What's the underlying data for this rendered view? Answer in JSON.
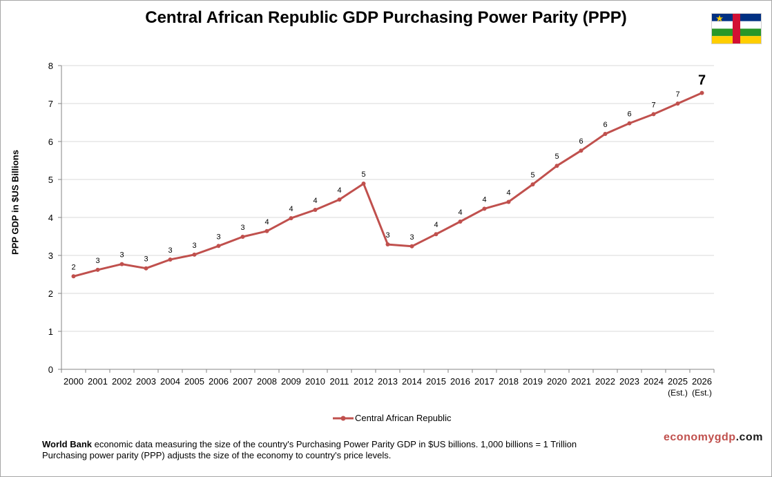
{
  "chart_data": {
    "type": "line",
    "title": "Central African Republic GDP Purchasing Power Parity (PPP)",
    "ylabel": "PPP GDP in $US Billions",
    "xlabel": "",
    "ylim": [
      0,
      8
    ],
    "yticks": [
      0,
      1,
      2,
      3,
      4,
      5,
      6,
      7,
      8
    ],
    "grid": true,
    "legend_position": "bottom",
    "categories": [
      "2000",
      "2001",
      "2002",
      "2003",
      "2004",
      "2005",
      "2006",
      "2007",
      "2008",
      "2009",
      "2010",
      "2011",
      "2012",
      "2013",
      "2014",
      "2015",
      "2016",
      "2017",
      "2018",
      "2019",
      "2020",
      "2021",
      "2022",
      "2023",
      "2024",
      "2025",
      "2026"
    ],
    "category_notes": {
      "2025": "(Est.)",
      "2026": "(Est.)"
    },
    "series": [
      {
        "name": "Central African Republic",
        "color": "#c0504d",
        "values": [
          2.45,
          2.62,
          2.77,
          2.66,
          2.89,
          3.02,
          3.25,
          3.49,
          3.64,
          3.98,
          4.2,
          4.47,
          4.89,
          3.29,
          3.24,
          3.56,
          3.89,
          4.23,
          4.41,
          4.87,
          5.36,
          5.76,
          6.2,
          6.48,
          6.72,
          7.0,
          7.28
        ],
        "data_labels": [
          "2",
          "3",
          "3",
          "3",
          "3",
          "3",
          "3",
          "3",
          "4",
          "4",
          "4",
          "4",
          "5",
          "3",
          "3",
          "4",
          "4",
          "4",
          "4",
          "5",
          "5",
          "6",
          "6",
          "6",
          "7",
          "7",
          "7"
        ]
      }
    ]
  },
  "legend": {
    "label": "Central African Republic"
  },
  "footnote": {
    "bold": "World Bank",
    "line1_rest": " economic data measuring the size of the country's Purchasing Power Parity GDP in $US billions. 1,000 billions = 1 Trillion",
    "line2": "Purchasing power parity (PPP) adjusts the size of the economy to country's price levels."
  },
  "brand": {
    "part1": "economy",
    "part2": "gdp",
    "part3": ".com"
  },
  "flag": {
    "name": "central-african-republic-flag",
    "colors": [
      "#003082",
      "#ffffff",
      "#289728",
      "#ffce00",
      "#d21034"
    ]
  },
  "colors": {
    "series": "#c0504d",
    "grid": "#d9d9d9",
    "axis": "#868686"
  }
}
